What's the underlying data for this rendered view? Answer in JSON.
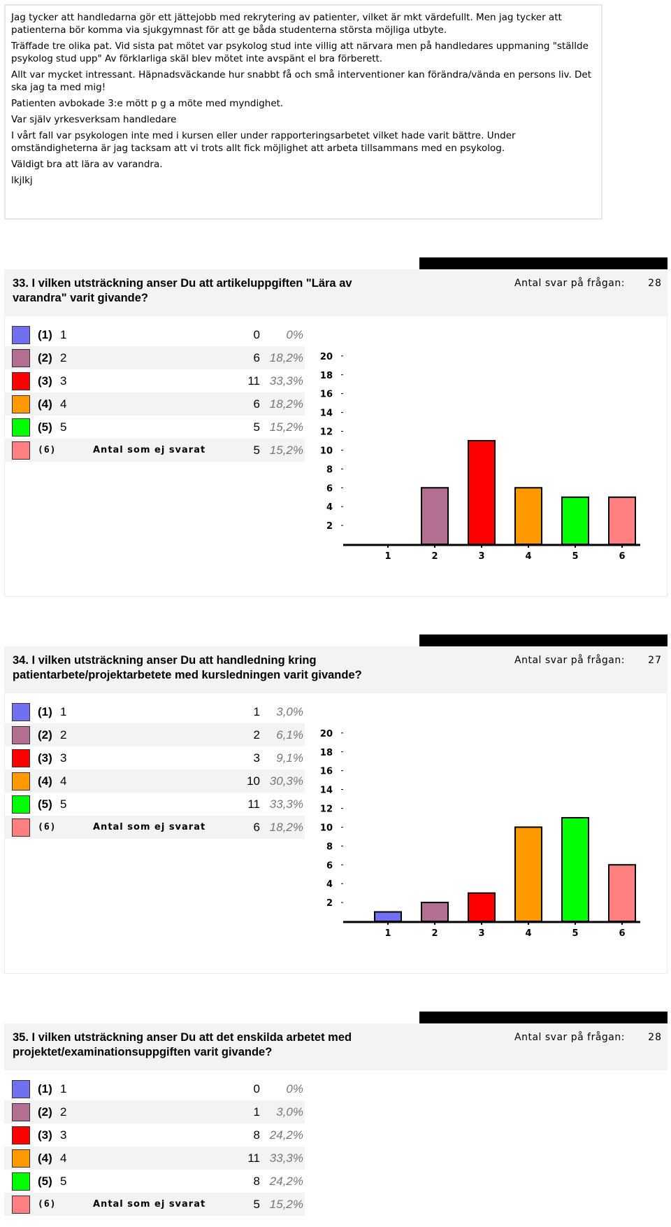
{
  "comments": [
    "Jag tycker att handledarna gör ett jättejobb med rekrytering av patienter, vilket är mkt värdefullt. Men jag tycker att patienterna bör komma via sjukgymnast för att ge båda studenterna största möjliga utbyte.",
    "Träffade tre olika pat. Vid sista pat mötet var psykolog stud inte villig att närvara men på handledares uppmaning \"ställde psykolog stud upp\" Av förklarliga skäl blev mötet inte avspänt el bra förberett.",
    "Allt var mycket intressant. Häpnadsväckande hur snabbt få och små interventioner kan förändra/vända en persons liv. Det ska jag ta med mig!",
    "Patienten avbokade 3:e mött p g a möte med myndighet.",
    "Var själv yrkesverksam handledare",
    "I vårt fall var psykologen inte med i kursen eller under rapporteringsarbetet vilket hade varit bättre. Under omständigheterna är jag tacksam att vi trots allt fick möjlighet att arbeta tillsammans med en psykolog.",
    "Väldigt bra att lära av varandra.",
    "lkjlkj"
  ],
  "questions": [
    {
      "title": "33. I vilken utsträckning anser Du att artikeluppgiften \"Lära av varandra\" varit givande?",
      "answers_label": "Antal svar på frågan:",
      "answers_count": 28,
      "rows": [
        {
          "code": "(1)",
          "label": "1",
          "count": 0,
          "percent": "0%",
          "color": "#7070f0"
        },
        {
          "code": "(2)",
          "label": "2",
          "count": 6,
          "percent": "18,2%",
          "color": "#b36f92"
        },
        {
          "code": "(3)",
          "label": "3",
          "count": 11,
          "percent": "33,3%",
          "color": "#ff0000"
        },
        {
          "code": "(4)",
          "label": "4",
          "count": 6,
          "percent": "18,2%",
          "color": "#ff9900"
        },
        {
          "code": "(5)",
          "label": "5",
          "count": 5,
          "percent": "15,2%",
          "color": "#00ff00"
        },
        {
          "code": "(6)",
          "label": "Antal som ej svarat",
          "count": 5,
          "percent": "15,2%",
          "color": "#ff8080"
        }
      ],
      "chart": {
        "type": "bar",
        "categories": [
          "1",
          "2",
          "3",
          "4",
          "5",
          "6"
        ],
        "ylim": [
          0,
          24
        ],
        "yticks": [
          2,
          4,
          6,
          8,
          10,
          12,
          14,
          16,
          18,
          20
        ]
      }
    },
    {
      "title": "34. I vilken utsträckning anser Du att handledning kring patientarbete/projektarbetete med kursledningen varit givande?",
      "answers_label": "Antal svar på frågan:",
      "answers_count": 27,
      "rows": [
        {
          "code": "(1)",
          "label": "1",
          "count": 1,
          "percent": "3,0%",
          "color": "#7070f0"
        },
        {
          "code": "(2)",
          "label": "2",
          "count": 2,
          "percent": "6,1%",
          "color": "#b36f92"
        },
        {
          "code": "(3)",
          "label": "3",
          "count": 3,
          "percent": "9,1%",
          "color": "#ff0000"
        },
        {
          "code": "(4)",
          "label": "4",
          "count": 10,
          "percent": "30,3%",
          "color": "#ff9900"
        },
        {
          "code": "(5)",
          "label": "5",
          "count": 11,
          "percent": "33,3%",
          "color": "#00ff00"
        },
        {
          "code": "(6)",
          "label": "Antal som ej svarat",
          "count": 6,
          "percent": "18,2%",
          "color": "#ff8080"
        }
      ],
      "chart": {
        "type": "bar",
        "categories": [
          "1",
          "2",
          "3",
          "4",
          "5",
          "6"
        ],
        "ylim": [
          0,
          24
        ],
        "yticks": [
          2,
          4,
          6,
          8,
          10,
          12,
          14,
          16,
          18,
          20
        ]
      }
    },
    {
      "title": "35. I vilken utsträckning anser Du att det enskilda arbetet med projektet/examinationsuppgiften varit givande?",
      "answers_label": "Antal svar på frågan:",
      "answers_count": 28,
      "rows": [
        {
          "code": "(1)",
          "label": "1",
          "count": 0,
          "percent": "0%",
          "color": "#7070f0"
        },
        {
          "code": "(2)",
          "label": "2",
          "count": 1,
          "percent": "3,0%",
          "color": "#b36f92"
        },
        {
          "code": "(3)",
          "label": "3",
          "count": 8,
          "percent": "24,2%",
          "color": "#ff0000"
        },
        {
          "code": "(4)",
          "label": "4",
          "count": 11,
          "percent": "33,3%",
          "color": "#ff9900"
        },
        {
          "code": "(5)",
          "label": "5",
          "count": 8,
          "percent": "24,2%",
          "color": "#00ff00"
        },
        {
          "code": "(6)",
          "label": "Antal som ej svarat",
          "count": 5,
          "percent": "15,2%",
          "color": "#ff8080"
        }
      ]
    }
  ]
}
